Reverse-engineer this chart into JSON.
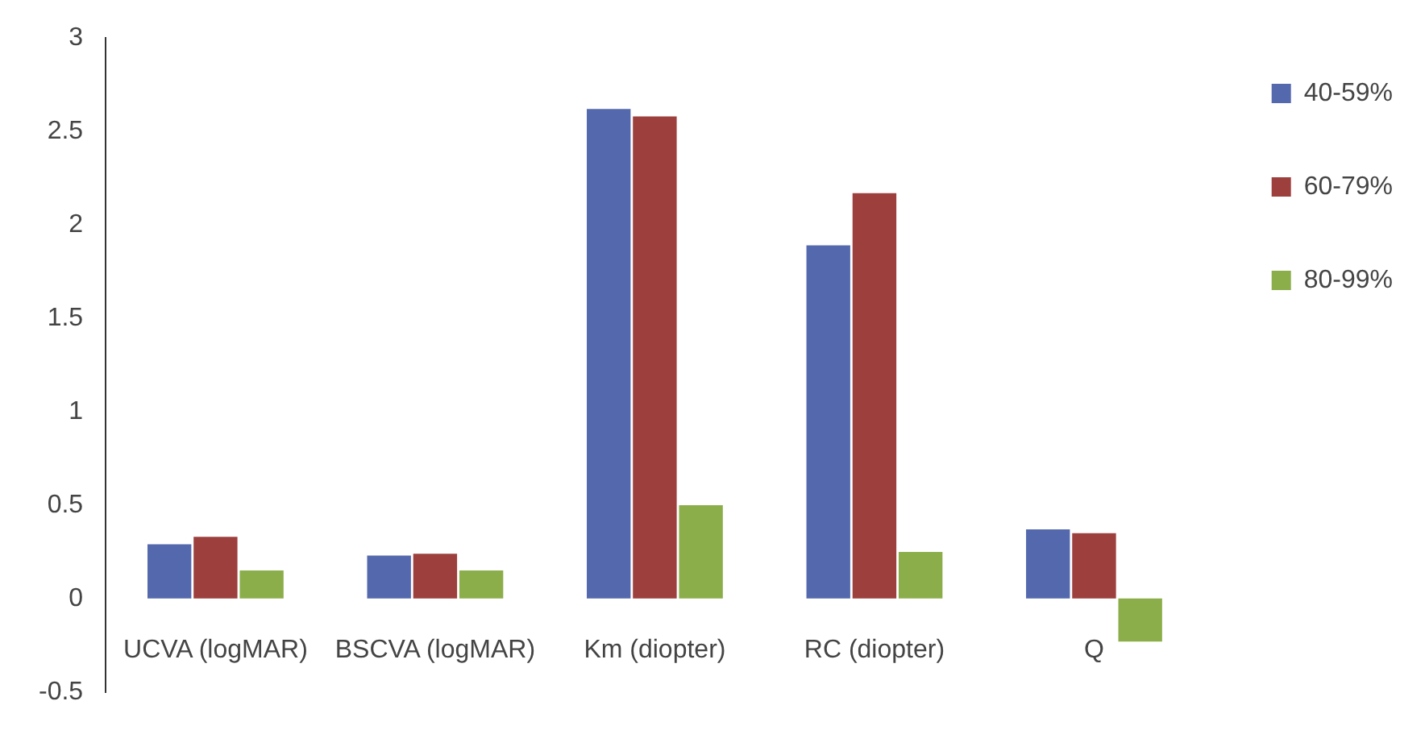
{
  "chart_data": {
    "type": "bar",
    "categories": [
      "UCVA (logMAR)",
      "BSCVA (logMAR)",
      "Km (diopter)",
      "RC (diopter)",
      "Q"
    ],
    "series": [
      {
        "name": "40-59%",
        "color": "#5469ad",
        "values": [
          0.29,
          0.23,
          2.62,
          1.89,
          0.37
        ]
      },
      {
        "name": "60-79%",
        "color": "#9c3f3d",
        "values": [
          0.33,
          0.24,
          2.58,
          2.17,
          0.35
        ]
      },
      {
        "name": "80-99%",
        "color": "#8bae4a",
        "values": [
          0.15,
          0.15,
          0.5,
          0.25,
          -0.23
        ]
      }
    ],
    "ylim": [
      -0.5,
      3
    ],
    "yticks": [
      -0.5,
      0,
      0.5,
      1,
      1.5,
      2,
      2.5,
      3
    ],
    "grid": false,
    "legend": "right"
  }
}
